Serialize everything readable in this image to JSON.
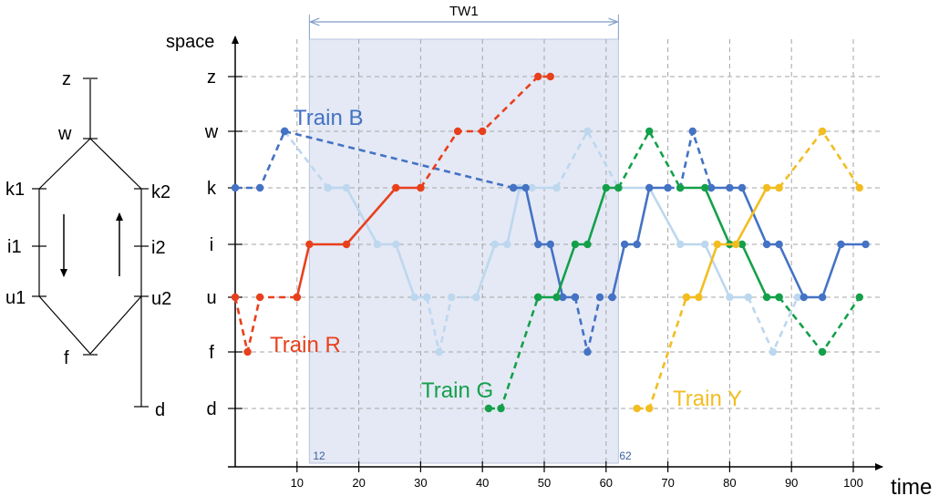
{
  "network": {
    "nodes": {
      "z": "z",
      "w": "w",
      "k1": "k1",
      "k2": "k2",
      "i1": "i1",
      "i2": "i2",
      "u1": "u1",
      "u2": "u2",
      "f": "f",
      "d": "d"
    }
  },
  "time_window": {
    "label": "TW1",
    "start_label": "12",
    "end_label": "62",
    "start": 12,
    "end": 62,
    "fill_color": "#e4e9f5"
  },
  "chart_data": {
    "type": "line",
    "xlabel": "time",
    "ylabel": "space",
    "y_categories": [
      "z",
      "w",
      "k",
      "i",
      "u",
      "f",
      "d"
    ],
    "x_ticks": [
      "10",
      "20",
      "30",
      "40",
      "50",
      "60",
      "70",
      "80",
      "90",
      "100"
    ],
    "series": [
      {
        "name": "Train B",
        "color": "#4472c4",
        "light_color": "#bdd7ee",
        "segments": [
          {
            "style": "dashed",
            "color": "#4472c4",
            "points": [
              [
                0,
                "k"
              ],
              [
                4,
                "k"
              ],
              [
                8,
                "w"
              ]
            ]
          },
          {
            "style": "dashed",
            "color": "#4472c4",
            "points": [
              [
                8,
                "w"
              ],
              [
                45,
                "k"
              ]
            ]
          },
          {
            "style": "solid",
            "color": "#4472c4",
            "points": [
              [
                45,
                "k"
              ],
              [
                47,
                "k"
              ],
              [
                49,
                "i"
              ],
              [
                51,
                "i"
              ],
              [
                53,
                "u"
              ],
              [
                55,
                "u"
              ]
            ]
          },
          {
            "style": "dashed",
            "color": "#4472c4",
            "points": [
              [
                55,
                "u"
              ],
              [
                57,
                "f"
              ],
              [
                59,
                "u"
              ],
              [
                61,
                "u"
              ]
            ]
          },
          {
            "style": "solid",
            "color": "#4472c4",
            "points": [
              [
                61,
                "u"
              ],
              [
                63,
                "i"
              ],
              [
                65,
                "i"
              ],
              [
                67,
                "k"
              ],
              [
                70,
                "k"
              ]
            ]
          },
          {
            "style": "dashed",
            "color": "#4472c4",
            "points": [
              [
                70,
                "k"
              ],
              [
                72,
                "k"
              ],
              [
                74,
                "w"
              ],
              [
                77,
                "k"
              ]
            ]
          },
          {
            "style": "solid",
            "color": "#4472c4",
            "points": [
              [
                77,
                "k"
              ],
              [
                80,
                "k"
              ],
              [
                82,
                "k"
              ],
              [
                86,
                "i"
              ],
              [
                88,
                "i"
              ],
              [
                92,
                "u"
              ],
              [
                95,
                "u"
              ],
              [
                98,
                "i"
              ],
              [
                102,
                "i"
              ]
            ]
          },
          {
            "style": "dashed",
            "color": "#bdd7ee",
            "points": [
              [
                8,
                "w"
              ],
              [
                15,
                "k"
              ]
            ]
          },
          {
            "style": "solid",
            "color": "#bdd7ee",
            "points": [
              [
                15,
                "k"
              ],
              [
                18,
                "k"
              ],
              [
                23,
                "i"
              ],
              [
                26,
                "i"
              ],
              [
                29,
                "u"
              ],
              [
                31,
                "u"
              ]
            ]
          },
          {
            "style": "dashed",
            "color": "#bdd7ee",
            "points": [
              [
                31,
                "u"
              ],
              [
                33,
                "f"
              ],
              [
                35,
                "u"
              ],
              [
                39,
                "u"
              ]
            ]
          },
          {
            "style": "solid",
            "color": "#bdd7ee",
            "points": [
              [
                39,
                "u"
              ],
              [
                42,
                "i"
              ],
              [
                44,
                "i"
              ],
              [
                46,
                "k"
              ],
              [
                48,
                "k"
              ],
              [
                52,
                "k"
              ]
            ]
          },
          {
            "style": "dashed",
            "color": "#bdd7ee",
            "points": [
              [
                52,
                "k"
              ],
              [
                57,
                "w"
              ],
              [
                62,
                "k"
              ]
            ]
          },
          {
            "style": "solid",
            "color": "#bdd7ee",
            "points": [
              [
                62,
                "k"
              ],
              [
                67,
                "k"
              ],
              [
                72,
                "i"
              ],
              [
                76,
                "i"
              ],
              [
                80,
                "u"
              ],
              [
                83,
                "u"
              ]
            ]
          },
          {
            "style": "dashed",
            "color": "#bdd7ee",
            "points": [
              [
                83,
                "u"
              ],
              [
                87,
                "f"
              ],
              [
                91,
                "u"
              ],
              [
                95,
                "u"
              ]
            ]
          }
        ]
      },
      {
        "name": "Train R",
        "color": "#e8401c",
        "segments": [
          {
            "style": "dashed",
            "color": "#e8401c",
            "points": [
              [
                0,
                "u"
              ],
              [
                2,
                "f"
              ],
              [
                4,
                "u"
              ],
              [
                10,
                "u"
              ]
            ]
          },
          {
            "style": "solid",
            "color": "#e8401c",
            "points": [
              [
                10,
                "u"
              ],
              [
                12,
                "i"
              ],
              [
                18,
                "i"
              ],
              [
                26,
                "k"
              ],
              [
                30,
                "k"
              ]
            ]
          },
          {
            "style": "dashed",
            "color": "#e8401c",
            "points": [
              [
                30,
                "k"
              ],
              [
                36,
                "w"
              ],
              [
                40,
                "w"
              ],
              [
                49,
                "z"
              ],
              [
                51,
                "z"
              ]
            ]
          }
        ]
      },
      {
        "name": "Train G",
        "color": "#14a04a",
        "segments": [
          {
            "style": "dashed",
            "color": "#14a04a",
            "points": [
              [
                41,
                "d"
              ],
              [
                43,
                "d"
              ],
              [
                49,
                "u"
              ]
            ]
          },
          {
            "style": "solid",
            "color": "#14a04a",
            "points": [
              [
                49,
                "u"
              ],
              [
                52,
                "u"
              ],
              [
                55,
                "i"
              ],
              [
                57,
                "i"
              ],
              [
                60,
                "k"
              ],
              [
                62,
                "k"
              ]
            ]
          },
          {
            "style": "dashed",
            "color": "#14a04a",
            "points": [
              [
                62,
                "k"
              ],
              [
                67,
                "w"
              ],
              [
                72,
                "k"
              ]
            ]
          },
          {
            "style": "solid",
            "color": "#14a04a",
            "points": [
              [
                72,
                "k"
              ],
              [
                76,
                "k"
              ],
              [
                80,
                "i"
              ],
              [
                82,
                "i"
              ],
              [
                86,
                "u"
              ],
              [
                88,
                "u"
              ]
            ]
          },
          {
            "style": "dashed",
            "color": "#14a04a",
            "points": [
              [
                88,
                "u"
              ],
              [
                95,
                "f"
              ],
              [
                101,
                "u"
              ]
            ]
          }
        ]
      },
      {
        "name": "Train Y",
        "color": "#f2bd21",
        "segments": [
          {
            "style": "dashed",
            "color": "#f2bd21",
            "points": [
              [
                65,
                "d"
              ],
              [
                67,
                "d"
              ],
              [
                73,
                "u"
              ]
            ]
          },
          {
            "style": "solid",
            "color": "#f2bd21",
            "points": [
              [
                73,
                "u"
              ],
              [
                75,
                "u"
              ],
              [
                78,
                "i"
              ],
              [
                81,
                "i"
              ],
              [
                86,
                "k"
              ],
              [
                88,
                "k"
              ]
            ]
          },
          {
            "style": "dashed",
            "color": "#f2bd21",
            "points": [
              [
                88,
                "k"
              ],
              [
                95,
                "w"
              ],
              [
                101,
                "k"
              ]
            ]
          }
        ]
      }
    ]
  }
}
